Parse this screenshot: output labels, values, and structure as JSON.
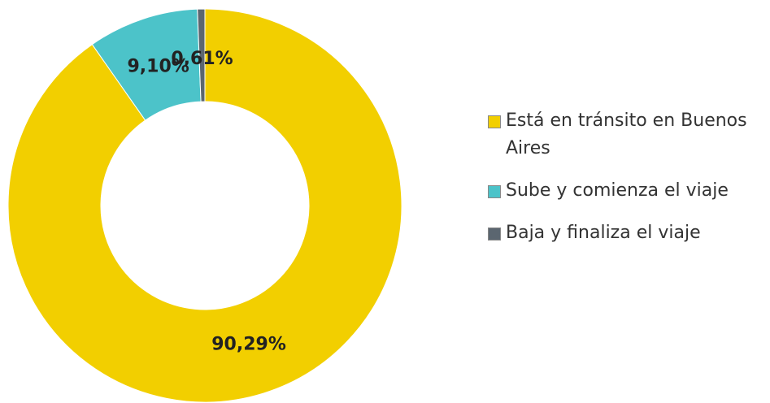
{
  "chart_data": {
    "type": "donut",
    "categories": [
      "Está en tránsito en Buenos Aires",
      "Sube y comienza el viaje",
      "Baja y finaliza el viaje"
    ],
    "values": [
      90.29,
      9.1,
      0.61
    ],
    "value_labels": [
      "90,29%",
      "9,10%",
      "0,61%"
    ],
    "colors": [
      "#f2cf00",
      "#4cc3c9",
      "#5b6670"
    ],
    "legend": "right"
  }
}
